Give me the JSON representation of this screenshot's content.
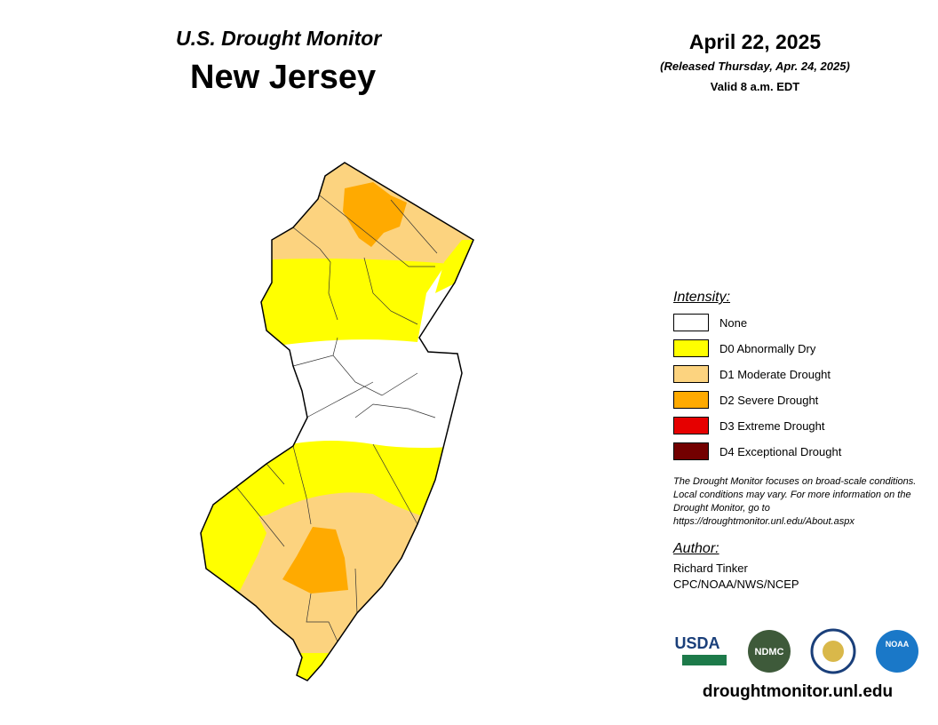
{
  "header": {
    "subtitle": "U.S. Drought Monitor",
    "title": "New Jersey"
  },
  "date": {
    "date": "April 22, 2025",
    "released": "(Released Thursday, Apr. 24, 2025)",
    "valid": "Valid 8 a.m. EDT"
  },
  "legend": {
    "title": "Intensity:",
    "items": [
      {
        "label": "None",
        "color": "#ffffff"
      },
      {
        "label": "D0 Abnormally Dry",
        "color": "#ffff00"
      },
      {
        "label": "D1 Moderate Drought",
        "color": "#fcd37f"
      },
      {
        "label": "D2 Severe Drought",
        "color": "#ffaa00"
      },
      {
        "label": "D3 Extreme Drought",
        "color": "#e60000"
      },
      {
        "label": "D4 Exceptional Drought",
        "color": "#730000"
      }
    ]
  },
  "note": "The Drought Monitor focuses on broad-scale conditions. Local conditions may vary. For more information on the Drought Monitor, go to https://droughtmonitor.unl.edu/About.aspx",
  "author": {
    "heading": "Author:",
    "name": "Richard Tinker",
    "org": "CPC/NOAA/NWS/NCEP"
  },
  "logos": [
    "USDA",
    "NDMC",
    "NOAA"
  ],
  "url": "droughtmonitor.unl.edu"
}
